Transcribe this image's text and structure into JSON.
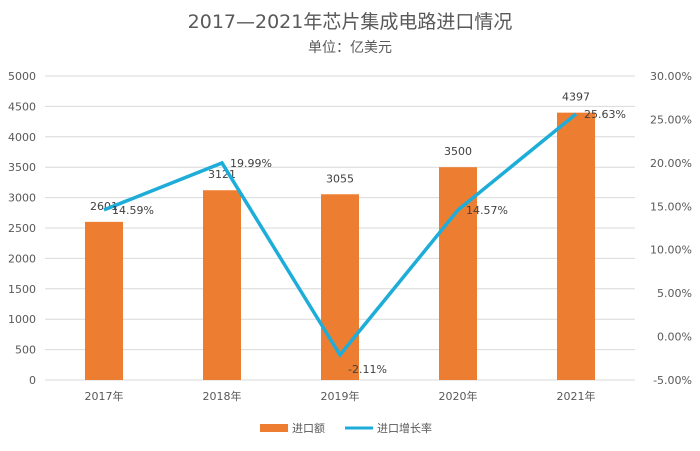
{
  "chart_data": {
    "type": "bar+line",
    "title": "2017—2021年芯片集成电路进口情况",
    "subtitle": "单位：亿美元",
    "categories": [
      "2017年",
      "2018年",
      "2019年",
      "2020年",
      "2021年"
    ],
    "series": [
      {
        "name": "进口额",
        "type": "bar",
        "axis": "left",
        "color": "#ED7D31",
        "values": [
          2601,
          3121,
          3055,
          3500,
          4397
        ],
        "labels": [
          "2601",
          "3121",
          "3055",
          "3500",
          "4397"
        ]
      },
      {
        "name": "进口增长率",
        "type": "line",
        "axis": "right",
        "color": "#1EADD9",
        "values": [
          14.59,
          19.99,
          -2.11,
          14.57,
          25.63
        ],
        "labels": [
          "14.59%",
          "19.99%",
          "-2.11%",
          "14.57%",
          "25.63%"
        ]
      }
    ],
    "ylim_left": [
      0,
      5000
    ],
    "yticks_left": [
      "0",
      "500",
      "1000",
      "1500",
      "2000",
      "2500",
      "3000",
      "3500",
      "4000",
      "4500",
      "5000"
    ],
    "ylim_right": [
      -5,
      30
    ],
    "yticks_right": [
      "-5.00%",
      "0.00%",
      "5.00%",
      "10.00%",
      "15.00%",
      "20.00%",
      "25.00%",
      "30.00%"
    ],
    "grid": true,
    "legend_position": "bottom"
  }
}
